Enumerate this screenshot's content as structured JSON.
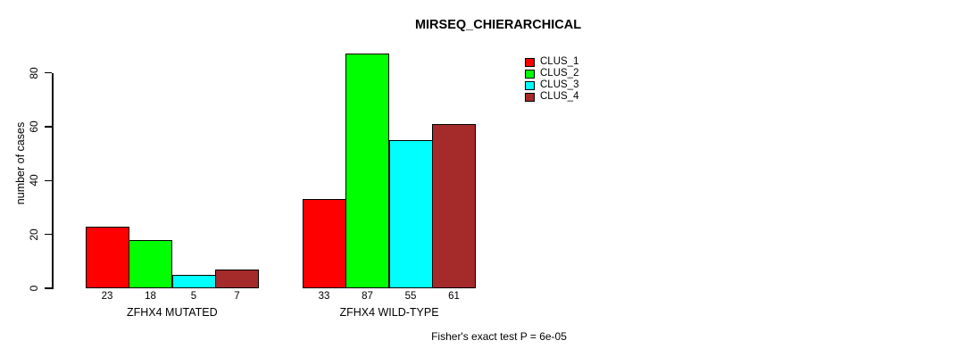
{
  "chart_data": {
    "type": "bar",
    "title": "MIRSEQ_CHIERARCHICAL",
    "ylabel": "number of cases",
    "xlabel": "",
    "categories": [
      "ZFHX4 MUTATED",
      "ZFHX4 WILD-TYPE"
    ],
    "series": [
      {
        "name": "CLUS_1",
        "color": "#FF0000",
        "values": [
          23,
          33
        ]
      },
      {
        "name": "CLUS_2",
        "color": "#00FF00",
        "values": [
          18,
          87
        ]
      },
      {
        "name": "CLUS_3",
        "color": "#00FFFF",
        "values": [
          5,
          55
        ]
      },
      {
        "name": "CLUS_4",
        "color": "#A52A2A",
        "values": [
          7,
          61
        ]
      }
    ],
    "yticks": [
      0,
      20,
      40,
      60,
      80
    ],
    "ylim": [
      0,
      87
    ],
    "bar_value_labels_shown": true,
    "legend_position": "top-right",
    "grid": false,
    "background": "#FFFFFF",
    "axis_color": "#000000",
    "text_color": "#000000",
    "annotation": "Fisher's exact test P = 6e-05"
  }
}
